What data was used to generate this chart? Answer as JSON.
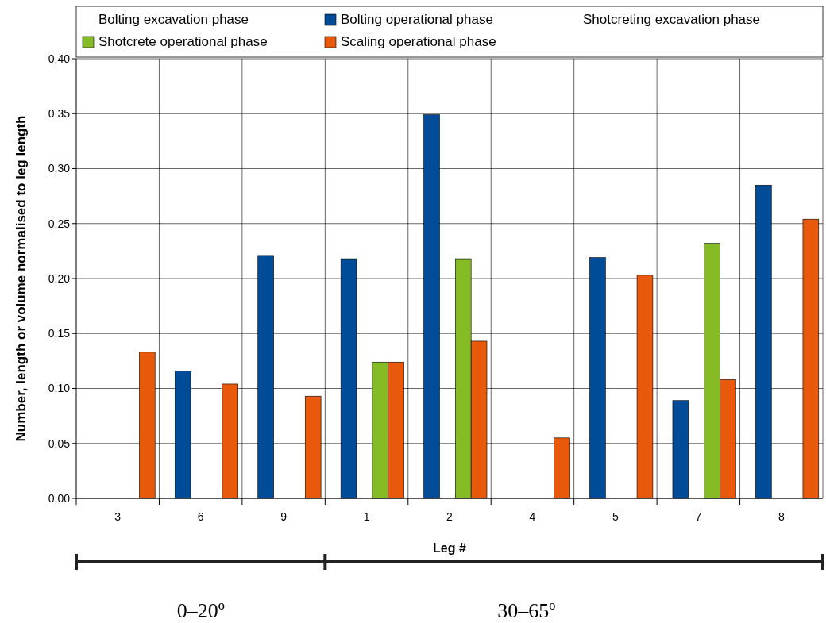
{
  "chart_data": {
    "type": "bar",
    "xlabel": "Leg #",
    "ylabel": "Number, length or volume normalised to leg length",
    "categories": [
      "3",
      "6",
      "9",
      "1",
      "2",
      "4",
      "5",
      "7",
      "8"
    ],
    "series": [
      {
        "name": "Bolting excavation phase",
        "values": [
          null,
          null,
          null,
          null,
          null,
          null,
          null,
          null,
          null
        ]
      },
      {
        "name": "Bolting operational phase",
        "color": "#004c99",
        "values": [
          0,
          0.116,
          0.221,
          0.218,
          0.349,
          0,
          0.219,
          0.089,
          0.285
        ]
      },
      {
        "name": "Shotcreting excavation phase",
        "values": [
          null,
          null,
          null,
          null,
          null,
          null,
          null,
          null,
          null
        ]
      },
      {
        "name": "Shotcrete operational phase",
        "color": "#85bc25",
        "values": [
          0,
          0,
          0,
          0.124,
          0.218,
          0,
          0,
          0.232,
          0
        ]
      },
      {
        "name": "Scaling operational phase",
        "color": "#e8590c",
        "values": [
          0.133,
          0.104,
          0.093,
          0.124,
          0.143,
          0.055,
          0.203,
          0.108,
          0.254
        ]
      }
    ],
    "ylim": [
      0,
      0.4
    ],
    "yticks": [
      {
        "value": 0,
        "label": "0,00"
      },
      {
        "value": 0.05,
        "label": "0,05"
      },
      {
        "value": 0.1,
        "label": "0,10"
      },
      {
        "value": 0.15,
        "label": "0,15"
      },
      {
        "value": 0.2,
        "label": "0,20"
      },
      {
        "value": 0.25,
        "label": "0,25"
      },
      {
        "value": 0.3,
        "label": "0,30"
      },
      {
        "value": 0.35,
        "label": "0,35"
      },
      {
        "value": 0.4,
        "label": "0,40"
      }
    ],
    "grid": true,
    "legend": "top",
    "annotations": [
      "0–20º",
      "30–65º"
    ]
  }
}
